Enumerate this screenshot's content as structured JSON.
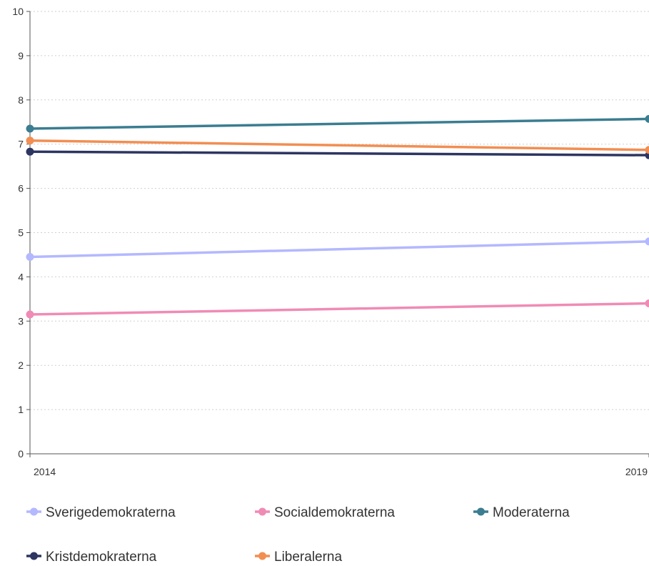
{
  "chart_data": {
    "type": "line",
    "title": "",
    "xlabel": "",
    "ylabel": "",
    "x": [
      "2014",
      "2019"
    ],
    "ylim": [
      0,
      10
    ],
    "yticks": [
      "0",
      "1",
      "2",
      "3",
      "4",
      "5",
      "6",
      "7",
      "8",
      "9",
      "10"
    ],
    "grid": "horizontal dotted",
    "legend_position": "bottom",
    "series": [
      {
        "name": "Sverigedemokraterna",
        "color": "#b3b8ff",
        "values": [
          4.45,
          4.8
        ]
      },
      {
        "name": "Socialdemokraterna",
        "color": "#f08bb5",
        "values": [
          3.15,
          3.4
        ]
      },
      {
        "name": "Moderaterna",
        "color": "#3b7d91",
        "values": [
          7.35,
          7.57
        ]
      },
      {
        "name": "Kristdemokraterna",
        "color": "#2d3561",
        "values": [
          6.83,
          6.75
        ]
      },
      {
        "name": "Liberalerna",
        "color": "#f28e52",
        "values": [
          7.08,
          6.87
        ]
      }
    ]
  }
}
